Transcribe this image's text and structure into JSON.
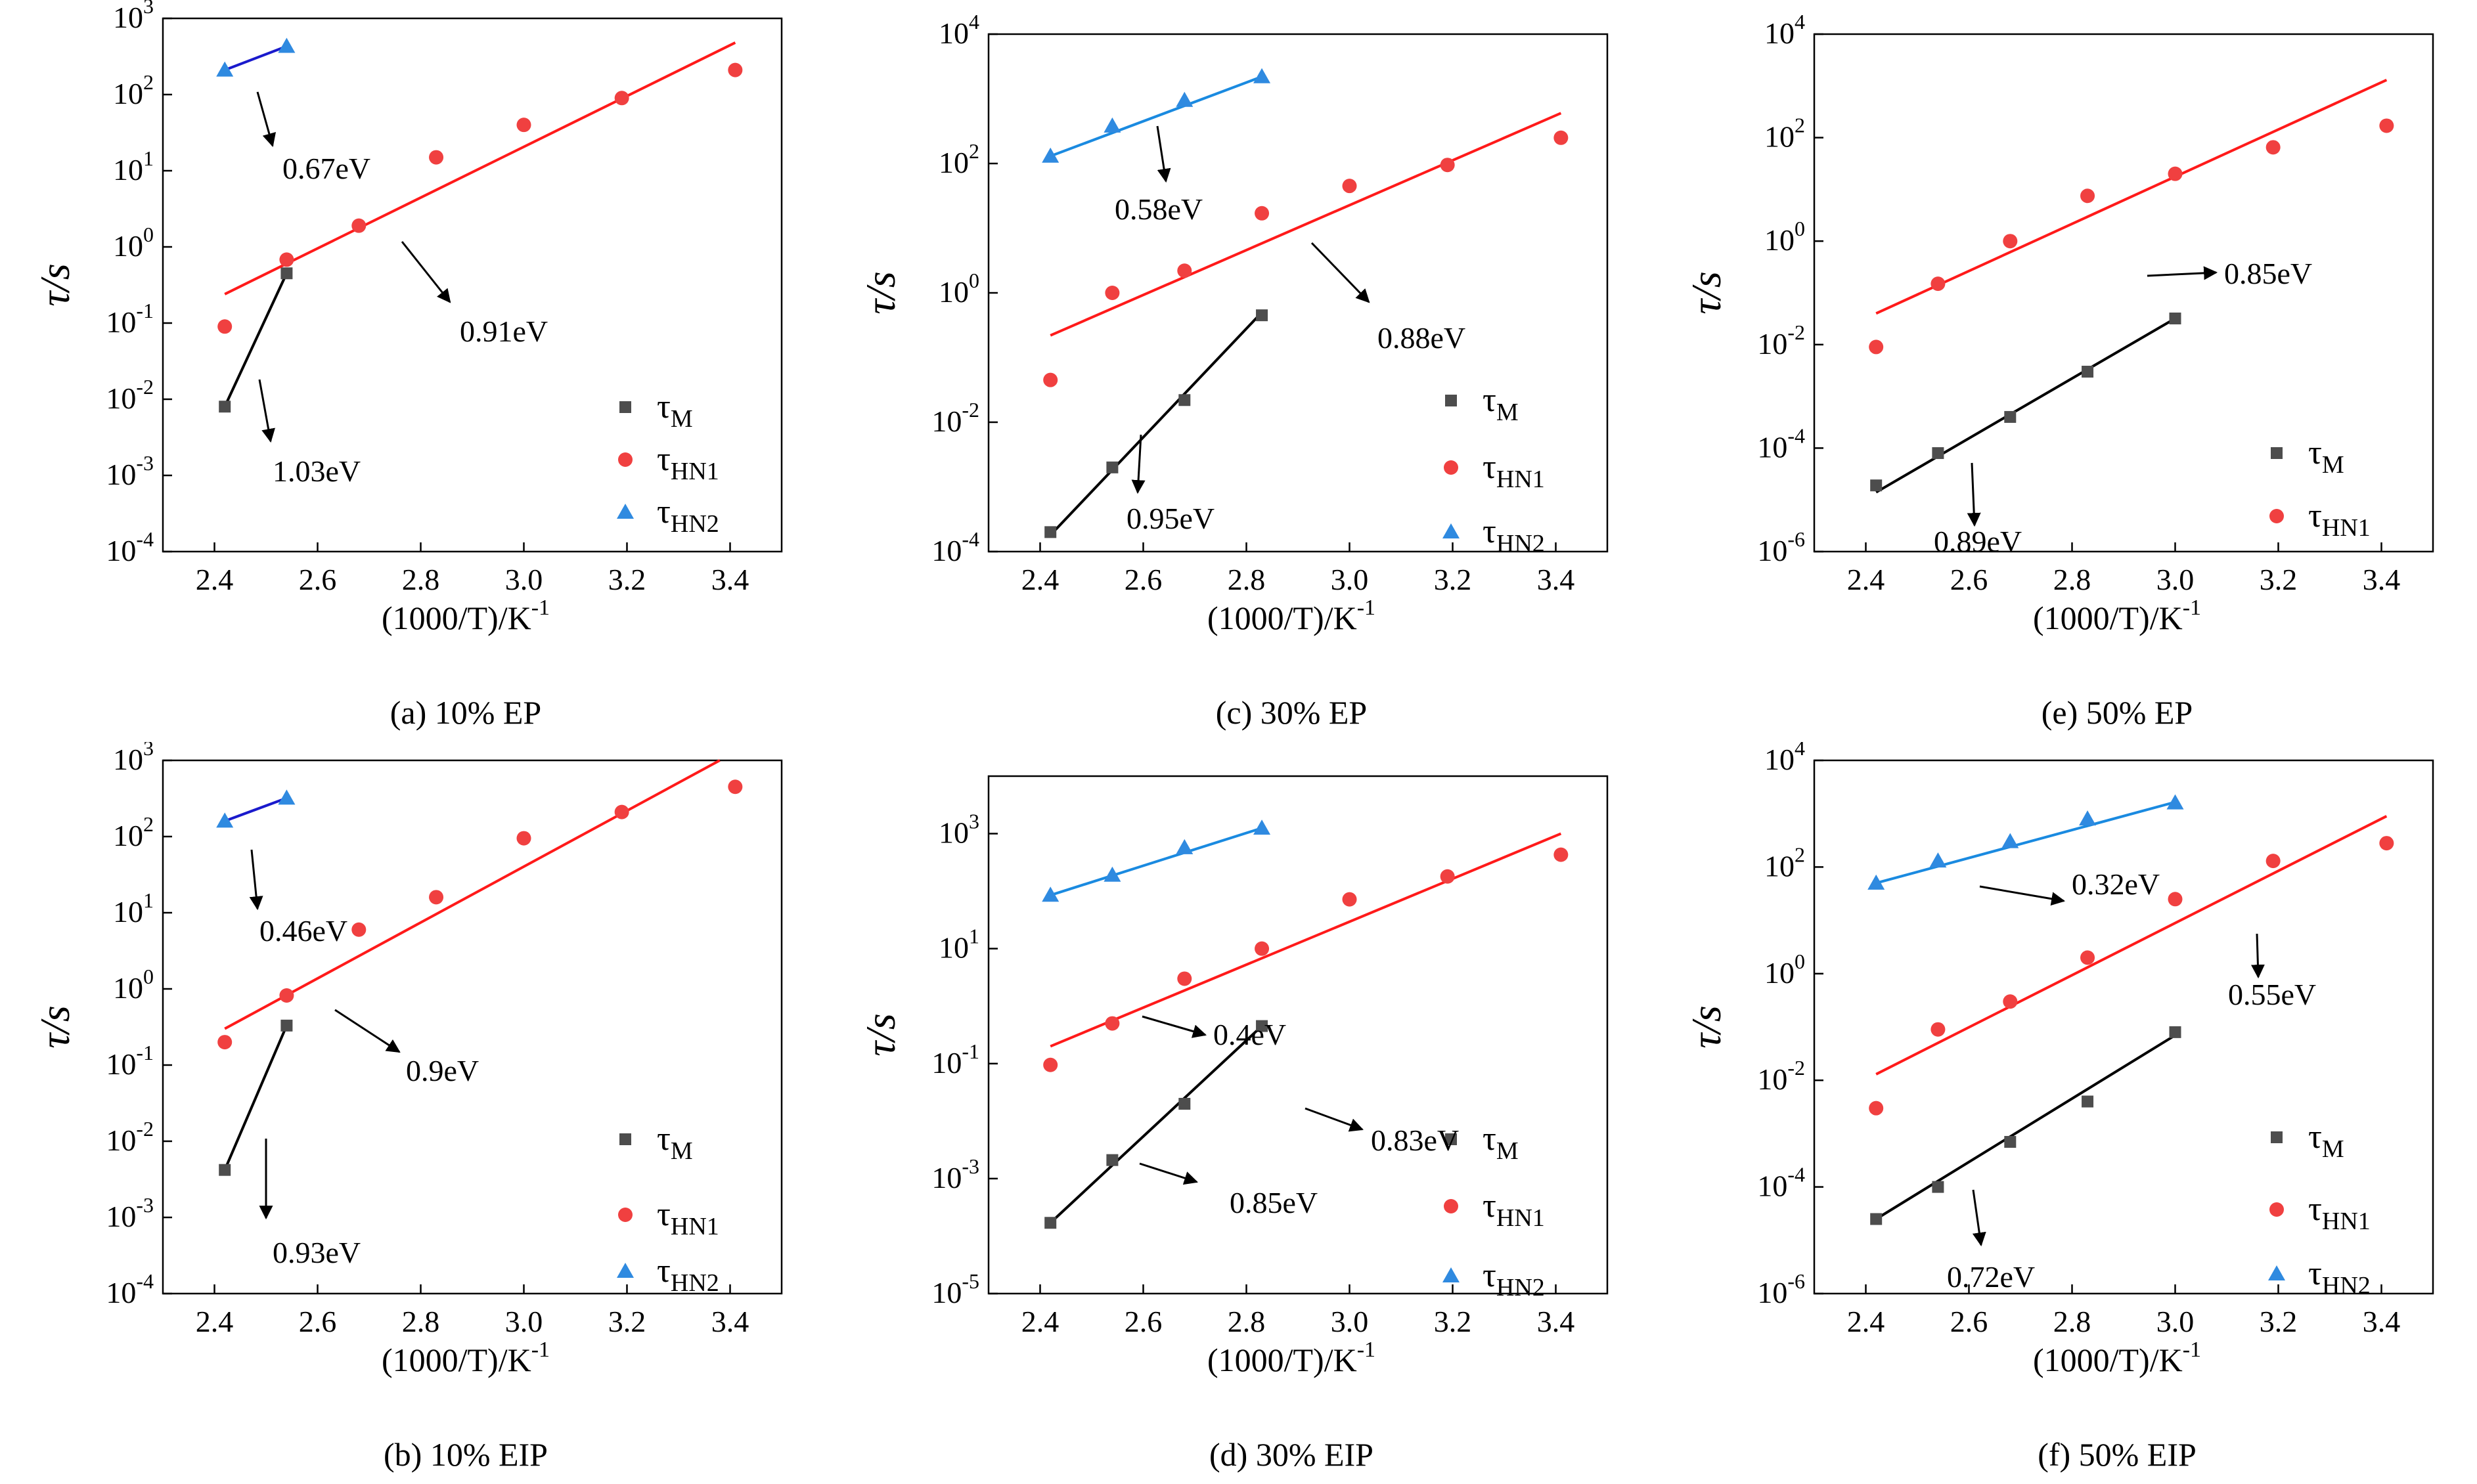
{
  "figure": {
    "ylabel": "τ/s",
    "xlabel": "(1000/T)/K",
    "xlabel_sup": "-1"
  },
  "chart_data": [
    {
      "id": "a",
      "type": "scatter",
      "caption": "(a) 10% EP",
      "xlim": [
        2.3,
        3.5
      ],
      "xticks": [
        2.4,
        2.6,
        2.8,
        3.0,
        3.2,
        3.4
      ],
      "ylog": [
        -4,
        3
      ],
      "yticks": [
        -4,
        -3,
        -2,
        -1,
        0,
        1,
        2,
        3
      ],
      "legend": [
        {
          "key": "M",
          "main": "τ",
          "sub": "M"
        },
        {
          "key": "HN1",
          "main": "τ",
          "sub": "HN1"
        },
        {
          "key": "HN2",
          "main": "τ",
          "sub": "HN2"
        }
      ],
      "series": [
        {
          "name": "τM",
          "key": "M",
          "x": [
            2.42,
            2.54
          ],
          "y": [
            0.008,
            0.45
          ],
          "fit": [
            [
              2.42,
              0.008
            ],
            [
              2.54,
              0.45
            ]
          ]
        },
        {
          "name": "τHN1",
          "key": "HN1",
          "x": [
            2.42,
            2.54,
            2.68,
            2.83,
            3.0,
            3.19,
            3.41
          ],
          "y": [
            0.09,
            0.68,
            1.9,
            15,
            40,
            90,
            210
          ],
          "fit": [
            [
              2.42,
              0.24
            ],
            [
              3.41,
              480
            ]
          ]
        },
        {
          "name": "τHN2",
          "key": "HN2",
          "x": [
            2.42,
            2.54
          ],
          "y": [
            210,
            430
          ],
          "fit": [
            [
              2.42,
              210
            ],
            [
              2.54,
              430
            ]
          ]
        }
      ],
      "annotations": [
        {
          "text": "0.67eV",
          "series": "HN2"
        },
        {
          "text": "0.91eV",
          "series": "HN1"
        },
        {
          "text": "1.03eV",
          "series": "M"
        }
      ]
    },
    {
      "id": "b",
      "type": "scatter",
      "caption": "(b) 10% EIP",
      "xlim": [
        2.3,
        3.5
      ],
      "xticks": [
        2.4,
        2.6,
        2.8,
        3.0,
        3.2,
        3.4
      ],
      "ylog": [
        -4,
        3
      ],
      "yticks": [
        -4,
        -3,
        -2,
        -1,
        0,
        1,
        2,
        3
      ],
      "legend": [
        {
          "key": "M",
          "main": "τ",
          "sub": "M"
        },
        {
          "key": "HN1",
          "main": "τ",
          "sub": "HN1"
        },
        {
          "key": "HN2",
          "main": "τ",
          "sub": "HN2"
        }
      ],
      "series": [
        {
          "name": "τM",
          "key": "M",
          "x": [
            2.42,
            2.54
          ],
          "y": [
            0.0042,
            0.33
          ],
          "fit": [
            [
              2.42,
              0.0042
            ],
            [
              2.54,
              0.33
            ]
          ]
        },
        {
          "name": "τHN1",
          "key": "HN1",
          "x": [
            2.42,
            2.54,
            2.68,
            2.83,
            3.0,
            3.19,
            3.41
          ],
          "y": [
            0.2,
            0.82,
            6,
            16,
            95,
            210,
            450
          ],
          "fit": [
            [
              2.42,
              0.3
            ],
            [
              3.38,
              1000
            ]
          ]
        },
        {
          "name": "τHN2",
          "key": "HN2",
          "x": [
            2.42,
            2.54
          ],
          "y": [
            160,
            320
          ],
          "fit": [
            [
              2.42,
              160
            ],
            [
              2.54,
              320
            ]
          ]
        }
      ],
      "annotations": [
        {
          "text": "0.46eV",
          "series": "HN2"
        },
        {
          "text": "0.9eV",
          "series": "HN1"
        },
        {
          "text": "0.93eV",
          "series": "M"
        }
      ]
    },
    {
      "id": "c",
      "type": "scatter",
      "caption": "(c) 30% EP",
      "xlim": [
        2.3,
        3.5
      ],
      "xticks": [
        2.4,
        2.6,
        2.8,
        3.0,
        3.2,
        3.4
      ],
      "ylog": [
        -4,
        4
      ],
      "yticks": [
        -4,
        -2,
        0,
        2,
        4
      ],
      "legend": [
        {
          "key": "M",
          "main": "τ",
          "sub": "M"
        },
        {
          "key": "HN1",
          "main": "τ",
          "sub": "HN1"
        },
        {
          "key": "HN2",
          "main": "τ",
          "sub": "HN2"
        }
      ],
      "series": [
        {
          "name": "τM",
          "key": "M",
          "x": [
            2.42,
            2.54,
            2.68,
            2.83
          ],
          "y": [
            0.0002,
            0.002,
            0.022,
            0.45
          ],
          "fit": [
            [
              2.42,
              0.00018
            ],
            [
              2.83,
              0.5
            ]
          ]
        },
        {
          "name": "τHN1",
          "key": "HN1",
          "x": [
            2.42,
            2.54,
            2.68,
            2.83,
            3.0,
            3.19,
            3.41
          ],
          "y": [
            0.045,
            1.0,
            2.2,
            17,
            45,
            95,
            250
          ],
          "fit": [
            [
              2.42,
              0.22
            ],
            [
              3.41,
              600
            ]
          ]
        },
        {
          "name": "τHN2",
          "key": "HN2",
          "x": [
            2.42,
            2.54,
            2.68,
            2.83
          ],
          "y": [
            130,
            380,
            950,
            2200
          ],
          "fit": [
            [
              2.42,
              130
            ],
            [
              2.83,
              2200
            ]
          ]
        }
      ],
      "annotations": [
        {
          "text": "0.58eV",
          "series": "HN2"
        },
        {
          "text": "0.88eV",
          "series": "HN1"
        },
        {
          "text": "0.95eV",
          "series": "M"
        }
      ]
    },
    {
      "id": "d",
      "type": "scatter",
      "caption": "(d) 30% EIP",
      "xlim": [
        2.3,
        3.5
      ],
      "xticks": [
        2.4,
        2.6,
        2.8,
        3.0,
        3.2,
        3.4
      ],
      "ylog": [
        -5,
        4
      ],
      "yticks": [
        -5,
        -3,
        -1,
        1,
        3
      ],
      "legend": [
        {
          "key": "M",
          "main": "τ",
          "sub": "M"
        },
        {
          "key": "HN1",
          "main": "τ",
          "sub": "HN1"
        },
        {
          "key": "HN2",
          "main": "τ",
          "sub": "HN2"
        }
      ],
      "series": [
        {
          "name": "τM",
          "key": "M",
          "x": [
            2.42,
            2.54,
            2.68,
            2.83
          ],
          "y": [
            0.00017,
            0.0021,
            0.02,
            0.45
          ],
          "fit": [
            [
              2.42,
              0.00017
            ],
            [
              2.83,
              0.45
            ]
          ]
        },
        {
          "name": "τHN1",
          "key": "HN1",
          "x": [
            2.42,
            2.54,
            2.68,
            2.83,
            3.0,
            3.19,
            3.41
          ],
          "y": [
            0.095,
            0.5,
            3,
            10,
            72,
            180,
            430
          ],
          "fit": [
            [
              2.42,
              0.2
            ],
            [
              3.41,
              1000
            ]
          ]
        },
        {
          "name": "τHN2",
          "key": "HN2",
          "x": [
            2.42,
            2.54,
            2.68,
            2.83
          ],
          "y": [
            85,
            190,
            570,
            1250
          ],
          "fit": [
            [
              2.42,
              85
            ],
            [
              2.83,
              1250
            ]
          ]
        }
      ],
      "annotations": [
        {
          "text": "0.4eV",
          "series": "HN2"
        },
        {
          "text": "0.83eV",
          "series": "HN1"
        },
        {
          "text": "0.85eV",
          "series": "M"
        }
      ]
    },
    {
      "id": "e",
      "type": "scatter",
      "caption": "(e) 50% EP",
      "xlim": [
        2.3,
        3.5
      ],
      "xticks": [
        2.4,
        2.6,
        2.8,
        3.0,
        3.2,
        3.4
      ],
      "ylog": [
        -6,
        4
      ],
      "yticks": [
        -6,
        -4,
        -2,
        0,
        2,
        4
      ],
      "legend": [
        {
          "key": "M",
          "main": "τ",
          "sub": "M"
        },
        {
          "key": "HN1",
          "main": "τ",
          "sub": "HN1"
        }
      ],
      "series": [
        {
          "name": "τM",
          "key": "M",
          "x": [
            2.42,
            2.54,
            2.68,
            2.83,
            3.0
          ],
          "y": [
            1.9e-05,
            8e-05,
            0.0004,
            0.003,
            0.032
          ],
          "fit": [
            [
              2.42,
              1.4e-05
            ],
            [
              3.0,
              0.032
            ]
          ]
        },
        {
          "name": "τHN1",
          "key": "HN1",
          "x": [
            2.42,
            2.54,
            2.68,
            2.83,
            3.0,
            3.19,
            3.41
          ],
          "y": [
            0.009,
            0.15,
            1.0,
            7.5,
            20,
            65,
            170
          ],
          "fit": [
            [
              2.42,
              0.04
            ],
            [
              3.41,
              1300
            ]
          ]
        }
      ],
      "annotations": [
        {
          "text": "0.85eV",
          "series": "HN1"
        },
        {
          "text": "0.89eV",
          "series": "M"
        }
      ]
    },
    {
      "id": "f",
      "type": "scatter",
      "caption": "(f) 50% EIP",
      "xlim": [
        2.3,
        3.5
      ],
      "xticks": [
        2.4,
        2.6,
        2.8,
        3.0,
        3.2,
        3.4
      ],
      "ylog": [
        -6,
        4
      ],
      "yticks": [
        -6,
        -4,
        -2,
        0,
        2,
        4
      ],
      "legend": [
        {
          "key": "M",
          "main": "τ",
          "sub": "M"
        },
        {
          "key": "HN1",
          "main": "τ",
          "sub": "HN1"
        },
        {
          "key": "HN2",
          "main": "τ",
          "sub": "HN2"
        }
      ],
      "series": [
        {
          "name": "τM",
          "key": "M",
          "x": [
            2.42,
            2.54,
            2.68,
            2.83,
            3.0
          ],
          "y": [
            2.5e-05,
            0.0001,
            0.0007,
            0.004,
            0.08
          ],
          "fit": [
            [
              2.42,
              2.5e-05
            ],
            [
              3.0,
              0.07
            ]
          ]
        },
        {
          "name": "τHN1",
          "key": "HN1",
          "x": [
            2.42,
            2.54,
            2.68,
            2.83,
            3.0,
            3.19,
            3.41
          ],
          "y": [
            0.003,
            0.09,
            0.3,
            2,
            25,
            130,
            280
          ],
          "fit": [
            [
              2.42,
              0.013
            ],
            [
              3.41,
              900
            ]
          ]
        },
        {
          "name": "τHN2",
          "key": "HN2",
          "x": [
            2.42,
            2.54,
            2.68,
            2.83,
            3.0
          ],
          "y": [
            50,
            130,
            300,
            800,
            1600
          ],
          "fit": [
            [
              2.42,
              50
            ],
            [
              3.0,
              1650
            ]
          ]
        }
      ],
      "annotations": [
        {
          "text": "0.32eV",
          "series": "HN2"
        },
        {
          "text": "0.55eV",
          "series": "HN1"
        },
        {
          "text": "0.72eV",
          "series": "M"
        }
      ]
    }
  ],
  "colors": {
    "M": "#4d4d4d",
    "HN1": "#f04040",
    "HN2": "#2f8ae0",
    "fitM": "#000000",
    "fitHN1": "#ff1a1a",
    "fitHN2a": "#1a1acc",
    "fitHN2b": "#1a8ae0"
  }
}
